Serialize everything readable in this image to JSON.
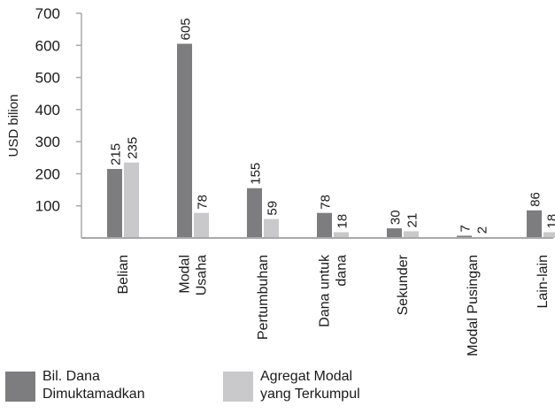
{
  "chart_data": {
    "type": "bar",
    "ylabel": "USD bilion",
    "ylim": [
      0,
      700
    ],
    "yticks": [
      100,
      200,
      300,
      400,
      500,
      600,
      700
    ],
    "categories": [
      [
        "Belian"
      ],
      [
        "Modal",
        "Usaha"
      ],
      [
        "Pertumbuhan"
      ],
      [
        "Dana untuk",
        "dana"
      ],
      [
        "Sekunder"
      ],
      [
        "Modal Pusingan"
      ],
      [
        "Lain-lain"
      ]
    ],
    "series": [
      {
        "name": "Bil. Dana Dimuktamadkan",
        "color": "#7d7c7e",
        "values": [
          215,
          605,
          155,
          78,
          30,
          7,
          86
        ]
      },
      {
        "name": "Agregat Modal yang Terkumpul",
        "color": "#c9c8ca",
        "values": [
          235,
          78,
          59,
          18,
          21,
          2,
          18
        ]
      }
    ]
  },
  "legend": {
    "series_a": {
      "line1": "Bil. Dana",
      "line2": "Dimuktamadkan"
    },
    "series_b": {
      "line1": "Agregat Modal",
      "line2": "yang Terkumpul"
    }
  }
}
